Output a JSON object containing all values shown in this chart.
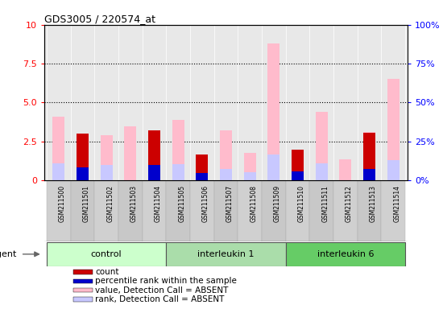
{
  "title": "GDS3005 / 220574_at",
  "samples": [
    "GSM211500",
    "GSM211501",
    "GSM211502",
    "GSM211503",
    "GSM211504",
    "GSM211505",
    "GSM211506",
    "GSM211507",
    "GSM211508",
    "GSM211509",
    "GSM211510",
    "GSM211511",
    "GSM211512",
    "GSM211513",
    "GSM211514"
  ],
  "groups": [
    {
      "name": "control",
      "indices": [
        0,
        1,
        2,
        3,
        4
      ]
    },
    {
      "name": "interleukin 1",
      "indices": [
        5,
        6,
        7,
        8,
        9
      ]
    },
    {
      "name": "interleukin 6",
      "indices": [
        10,
        11,
        12,
        13,
        14
      ]
    }
  ],
  "group_colors": [
    "#ccffcc",
    "#aaddaa",
    "#66cc66"
  ],
  "value_absent": [
    4.1,
    3.0,
    2.9,
    3.5,
    3.2,
    3.9,
    1.65,
    3.2,
    1.75,
    8.8,
    1.95,
    4.4,
    1.35,
    3.1,
    6.5
  ],
  "rank_absent": [
    1.1,
    0.0,
    1.0,
    0.0,
    0.0,
    1.05,
    0.0,
    0.75,
    0.55,
    1.65,
    0.55,
    1.1,
    0.0,
    0.7,
    1.3
  ],
  "count": [
    0.0,
    3.0,
    0.0,
    0.0,
    3.2,
    0.0,
    1.65,
    0.0,
    0.0,
    0.0,
    2.0,
    0.0,
    0.0,
    3.05,
    0.0
  ],
  "pct_rank": [
    0.0,
    0.85,
    0.0,
    0.0,
    1.0,
    0.0,
    0.5,
    0.0,
    0.0,
    0.0,
    0.6,
    0.0,
    0.0,
    0.75,
    0.0
  ],
  "ylim_left": [
    0,
    10
  ],
  "ylim_right": [
    0,
    100
  ],
  "yticks_left": [
    0,
    2.5,
    5.0,
    7.5,
    10
  ],
  "yticks_right": [
    0,
    25,
    50,
    75,
    100
  ],
  "dotted_lines": [
    2.5,
    5.0,
    7.5
  ],
  "bar_width": 0.5,
  "color_value_absent": "#ffbbcc",
  "color_rank_absent": "#c8c8ff",
  "color_count": "#cc0000",
  "color_pct_rank": "#0000cc",
  "bg_color": "#e8e8e8",
  "tick_bg": "#d8d8d8",
  "legend_items": [
    {
      "label": "count",
      "color": "#cc0000"
    },
    {
      "label": "percentile rank within the sample",
      "color": "#0000cc"
    },
    {
      "label": "value, Detection Call = ABSENT",
      "color": "#ffbbcc"
    },
    {
      "label": "rank, Detection Call = ABSENT",
      "color": "#c8c8ff"
    }
  ]
}
